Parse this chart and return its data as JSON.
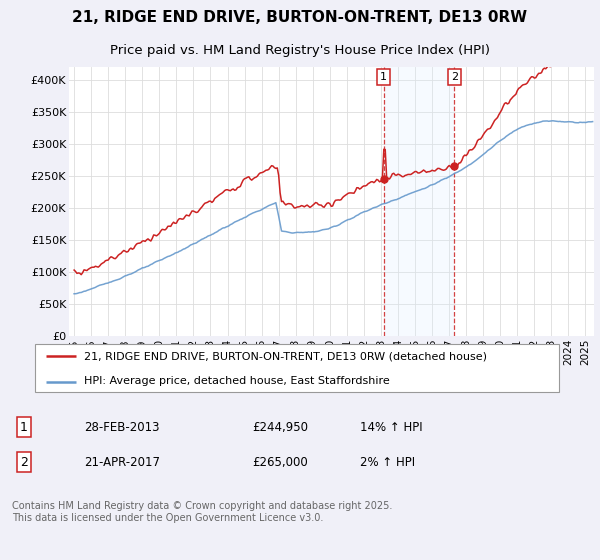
{
  "title_line1": "21, RIDGE END DRIVE, BURTON-ON-TRENT, DE13 0RW",
  "title_line2": "Price paid vs. HM Land Registry's House Price Index (HPI)",
  "ylabel_ticks": [
    "£0",
    "£50K",
    "£100K",
    "£150K",
    "£200K",
    "£250K",
    "£300K",
    "£350K",
    "£400K"
  ],
  "ytick_values": [
    0,
    50000,
    100000,
    150000,
    200000,
    250000,
    300000,
    350000,
    400000
  ],
  "ylim": [
    0,
    420000
  ],
  "xlim_start": 1994.7,
  "xlim_end": 2025.5,
  "red_line_color": "#cc2222",
  "blue_line_color": "#6699cc",
  "blue_fill_color": "#ddeeff",
  "marker1_x": 2013.16,
  "marker1_y": 244950,
  "marker2_x": 2017.31,
  "marker2_y": 265000,
  "vline1_x": 2013.16,
  "vline2_x": 2017.31,
  "legend_label1": "21, RIDGE END DRIVE, BURTON-ON-TRENT, DE13 0RW (detached house)",
  "legend_label2": "HPI: Average price, detached house, East Staffordshire",
  "sale1_label": "1",
  "sale1_date": "28-FEB-2013",
  "sale1_price": "£244,950",
  "sale1_hpi": "14% ↑ HPI",
  "sale2_label": "2",
  "sale2_date": "21-APR-2017",
  "sale2_price": "£265,000",
  "sale2_hpi": "2% ↑ HPI",
  "footnote": "Contains HM Land Registry data © Crown copyright and database right 2025.\nThis data is licensed under the Open Government Licence v3.0.",
  "background_color": "#f0f0f8",
  "plot_bg_color": "#ffffff",
  "title_fontsize": 11,
  "subtitle_fontsize": 9.5,
  "tick_fontsize": 8,
  "legend_fontsize": 8,
  "annotation_fontsize": 8.5,
  "footnote_fontsize": 7
}
